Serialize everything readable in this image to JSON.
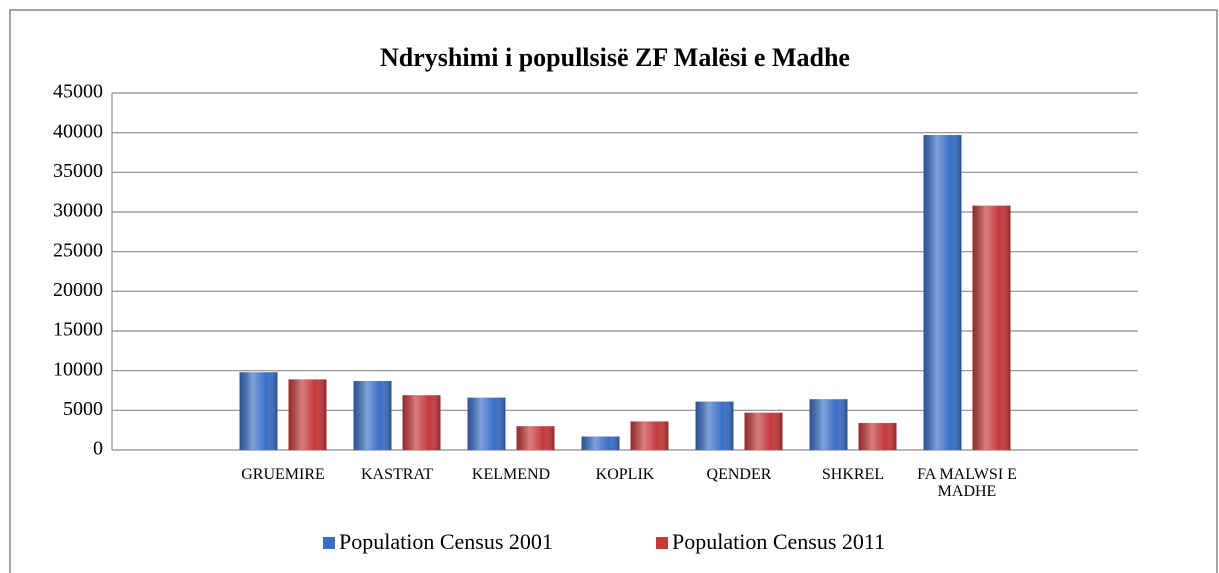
{
  "chart_data": {
    "type": "bar",
    "title": "Ndryshimi i popullsisë ZF Malësi e Madhe",
    "categories": [
      null,
      "GRUEMIRE",
      "KASTRAT",
      "KELMEND",
      "KOPLIK",
      "QENDER",
      "SHKREL",
      "FA MALWSI E MADHE",
      null
    ],
    "series": [
      {
        "name": "Population  Census 2001",
        "color": "#3b6fc6",
        "values": [
          null,
          9800,
          8700,
          6600,
          1700,
          6100,
          6400,
          39700,
          null
        ]
      },
      {
        "name": "Population Census 2011",
        "color": "#c4393c",
        "values": [
          null,
          8900,
          6900,
          3000,
          3600,
          4700,
          3400,
          30800,
          null
        ]
      }
    ],
    "ylim": [
      0,
      45000
    ],
    "yticks": [
      0,
      5000,
      10000,
      15000,
      20000,
      25000,
      30000,
      35000,
      40000,
      45000
    ],
    "grid": true,
    "legend": "bottom"
  }
}
